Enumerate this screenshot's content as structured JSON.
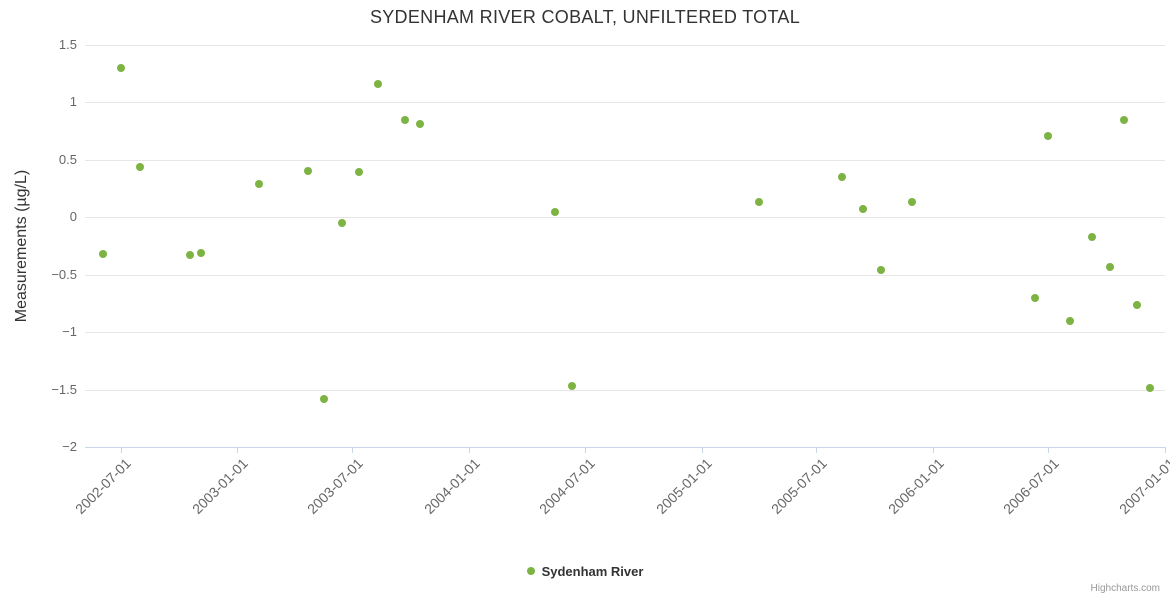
{
  "title": "SYDENHAM RIVER COBALT, UNFILTERED TOTAL",
  "legend": {
    "label": "Sydenham River"
  },
  "credits": {
    "label": "Highcharts.com"
  },
  "colors": {
    "point": "#7CB342",
    "grid": "#e6e6e6",
    "axis_line": "#ccd6eb",
    "tick_label_text": "#666666",
    "title_text": "#333333",
    "credits_text": "#999999",
    "background": "#ffffff"
  },
  "chart_data": {
    "type": "scatter",
    "title": "SYDENHAM RIVER COBALT, UNFILTERED TOTAL",
    "xlabel": "",
    "ylabel": "Measurements (µg/L)",
    "ylim": [
      -2,
      1.5
    ],
    "y_ticks": [
      1.5,
      1,
      0.5,
      0,
      -0.5,
      -1,
      -1.5,
      -2
    ],
    "y_tick_labels": [
      "1.5",
      "1",
      "0.5",
      "0",
      "−0.5",
      "−1",
      "−1.5",
      "−2"
    ],
    "x_min": "2002-05-06",
    "x_max": "2007-01-01",
    "x_ticks": [
      "2002-07-01",
      "2003-01-01",
      "2003-07-01",
      "2004-01-01",
      "2004-07-01",
      "2005-01-01",
      "2005-07-01",
      "2006-01-01",
      "2006-07-01",
      "2007-01-01"
    ],
    "grid": true,
    "legend_position": "bottom",
    "series": [
      {
        "name": "Sydenham River",
        "color": "#7CB342",
        "points": [
          {
            "date": "2002-06-04",
            "value": -0.32
          },
          {
            "date": "2002-07-01",
            "value": 1.3
          },
          {
            "date": "2002-07-31",
            "value": 0.44
          },
          {
            "date": "2002-10-19",
            "value": -0.33
          },
          {
            "date": "2002-11-04",
            "value": -0.31
          },
          {
            "date": "2003-02-04",
            "value": 0.29
          },
          {
            "date": "2003-04-22",
            "value": 0.4
          },
          {
            "date": "2003-05-17",
            "value": -1.58
          },
          {
            "date": "2003-06-15",
            "value": -0.05
          },
          {
            "date": "2003-07-11",
            "value": 0.39
          },
          {
            "date": "2003-08-10",
            "value": 1.16
          },
          {
            "date": "2003-09-22",
            "value": 0.85
          },
          {
            "date": "2003-10-16",
            "value": 0.81
          },
          {
            "date": "2004-05-16",
            "value": 0.05
          },
          {
            "date": "2004-06-11",
            "value": -1.47
          },
          {
            "date": "2005-04-01",
            "value": 0.13
          },
          {
            "date": "2005-08-11",
            "value": 0.35
          },
          {
            "date": "2005-09-13",
            "value": 0.07
          },
          {
            "date": "2005-10-10",
            "value": -0.46
          },
          {
            "date": "2005-11-28",
            "value": 0.13
          },
          {
            "date": "2006-06-10",
            "value": -0.7
          },
          {
            "date": "2006-07-01",
            "value": 0.71
          },
          {
            "date": "2006-08-04",
            "value": -0.9
          },
          {
            "date": "2006-09-08",
            "value": -0.17
          },
          {
            "date": "2006-10-06",
            "value": -0.43
          },
          {
            "date": "2006-10-28",
            "value": 0.85
          },
          {
            "date": "2006-11-18",
            "value": -0.76
          },
          {
            "date": "2006-12-08",
            "value": -1.49
          }
        ]
      }
    ]
  }
}
